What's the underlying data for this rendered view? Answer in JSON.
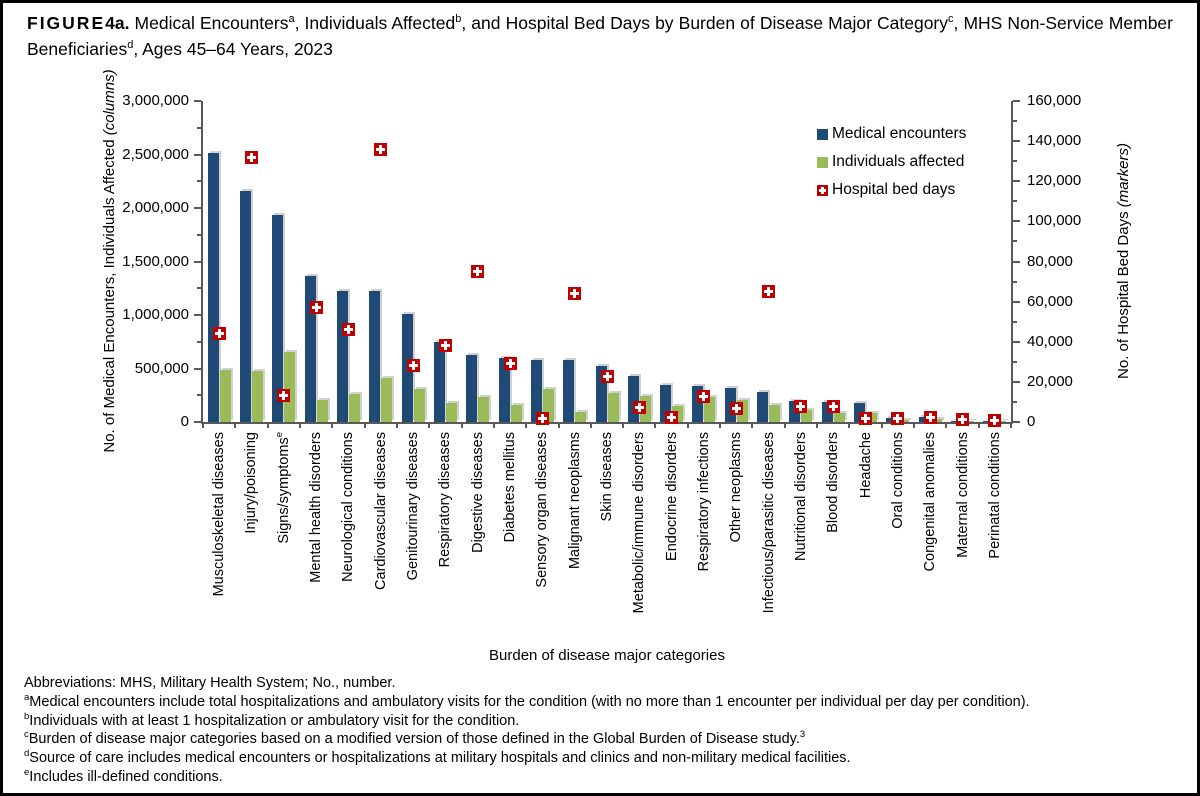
{
  "title": {
    "figure_word": "FIGURE",
    "figure_num": "4a.",
    "r1": " Medical Encounters",
    "s1": "a",
    "r2": ", Individuals Affected",
    "s2": "b",
    "r3": ", and Hospital Bed Days by Burden of Disease Major Category",
    "s3": "c",
    "r4": ", MHS Non-Service Member Beneficiaries",
    "s4": "d",
    "r5": ", Ages 45–64 Years, 2023"
  },
  "chart_data": {
    "type": "bar",
    "subtype": "grouped-columns-with-scatter-markers",
    "grid": false,
    "legend_position": "top-right-inside",
    "left_axis": {
      "title_main": "No. of Medical Encounters, Individuals Affected ",
      "title_qualifier": "(columns)",
      "min": 0,
      "max": 3000000,
      "major_step": 500000,
      "minor_step": 250000
    },
    "right_axis": {
      "title_main": "No. of Hospital Bed Days ",
      "title_qualifier": "(markers)",
      "min": 0,
      "max": 160000,
      "major_step": 20000,
      "minor_step": 10000
    },
    "xaxis_title": "Burden of disease major categories",
    "legend": [
      "Medical encounters",
      "Individuals affected",
      "Hospital bed days"
    ],
    "colors": {
      "medical_encounters": "#1F4A75",
      "individuals_affected": "#9BBB59",
      "hospital_bed_days": "#C00000",
      "axis": "#595959"
    },
    "categories": [
      {
        "label": "Musculoskeletal diseases"
      },
      {
        "label": "Injury/poisoning"
      },
      {
        "label": "Signs/symptoms",
        "sup": "e"
      },
      {
        "label": "Mental health disorders"
      },
      {
        "label": "Neurological conditions"
      },
      {
        "label": "Cardiovascular diseases"
      },
      {
        "label": "Genitourinary diseases"
      },
      {
        "label": "Respiratory diseases"
      },
      {
        "label": "Digestive diseases"
      },
      {
        "label": "Diabetes mellitus"
      },
      {
        "label": "Sensory organ diseases"
      },
      {
        "label": "Malignant neoplasms"
      },
      {
        "label": "Skin diseases"
      },
      {
        "label": "Metabolic/immune disorders"
      },
      {
        "label": "Endocrine disorders"
      },
      {
        "label": "Respiratory infections"
      },
      {
        "label": "Other neoplasms"
      },
      {
        "label": "Infectious/parasitic diseases"
      },
      {
        "label": "Nutritional disorders"
      },
      {
        "label": "Blood disorders"
      },
      {
        "label": "Headache"
      },
      {
        "label": "Oral conditions"
      },
      {
        "label": "Congenital anomalies"
      },
      {
        "label": "Maternal conditions"
      },
      {
        "label": "Perinatal conditions"
      }
    ],
    "series": [
      {
        "name": "Medical encounters",
        "render": "column",
        "axis": "left",
        "values": [
          2515000,
          2155000,
          1935000,
          1365000,
          1225000,
          1220000,
          1010000,
          750000,
          630000,
          595000,
          580000,
          575000,
          520000,
          430000,
          345000,
          340000,
          315000,
          285000,
          195000,
          185000,
          180000,
          40000,
          45000,
          12000,
          6000
        ]
      },
      {
        "name": "Individuals affected",
        "render": "column",
        "axis": "left",
        "values": [
          490000,
          480000,
          650000,
          205000,
          265000,
          410000,
          310000,
          180000,
          230000,
          160000,
          305000,
          90000,
          270000,
          240000,
          150000,
          230000,
          205000,
          160000,
          110000,
          80000,
          80000,
          22000,
          28000,
          8000,
          4000
        ]
      },
      {
        "name": "Hospital bed days",
        "render": "marker",
        "axis": "right",
        "values": [
          44000,
          132000,
          13000,
          57000,
          46000,
          136000,
          28000,
          38000,
          75000,
          29000,
          1500,
          64000,
          22500,
          7000,
          2000,
          12500,
          6500,
          65000,
          7500,
          7500,
          1500,
          1500,
          2000,
          1000,
          500
        ]
      }
    ]
  },
  "footnotes": [
    {
      "sup": "",
      "text": "Abbreviations: MHS, Military Health System; No., number.",
      "ref": ""
    },
    {
      "sup": "a",
      "text": "Medical encounters include total hospitalizations and ambulatory visits for the condition (with no more than 1 encounter per individual per day per condition).",
      "ref": ""
    },
    {
      "sup": "b",
      "text": "Individuals with at least 1 hospitalization or ambulatory visit for the condition.",
      "ref": ""
    },
    {
      "sup": "c",
      "text": "Burden of disease major categories based on a modified version of those defined in the Global Burden of Disease study.",
      "ref": "3"
    },
    {
      "sup": "d",
      "text": "Source of care includes medical encounters or hospitalizations at military hospitals and clinics and non-military medical facilities.",
      "ref": ""
    },
    {
      "sup": "e",
      "text": "Includes ill-defined conditions.",
      "ref": ""
    }
  ]
}
